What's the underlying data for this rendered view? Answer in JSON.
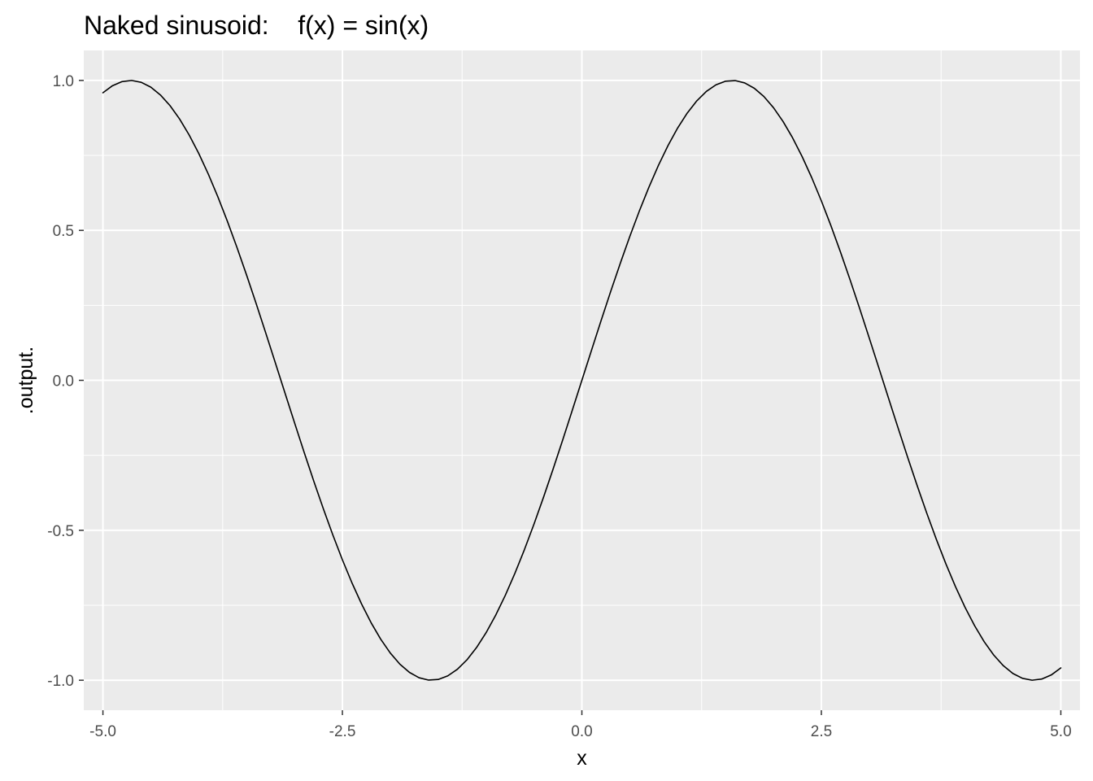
{
  "chart_data": {
    "type": "line",
    "title": "Naked sinusoid:    f(x) = sin(x)",
    "xlabel": "x",
    "ylabel": ".output.",
    "function": "sin(x)",
    "xlim": [
      -5.2,
      5.2
    ],
    "ylim": [
      -1.1,
      1.1
    ],
    "x_range": [
      -5,
      5
    ],
    "n_points": 101,
    "x_ticks": [
      -5.0,
      -2.5,
      0.0,
      2.5,
      5.0
    ],
    "x_tick_labels": [
      "-5.0",
      "-2.5",
      "0.0",
      "2.5",
      "5.0"
    ],
    "y_ticks": [
      -1.0,
      -0.5,
      0.0,
      0.5,
      1.0
    ],
    "y_tick_labels": [
      "-1.0",
      "-0.5",
      "0.0",
      "0.5",
      "1.0"
    ],
    "grid": true,
    "legend": "none",
    "colors": {
      "panel_background": "#ebebeb",
      "grid_line": "#ffffff",
      "series_line": "#000000",
      "tick_label": "#4d4d4d",
      "tick_mark": "#333333"
    }
  }
}
